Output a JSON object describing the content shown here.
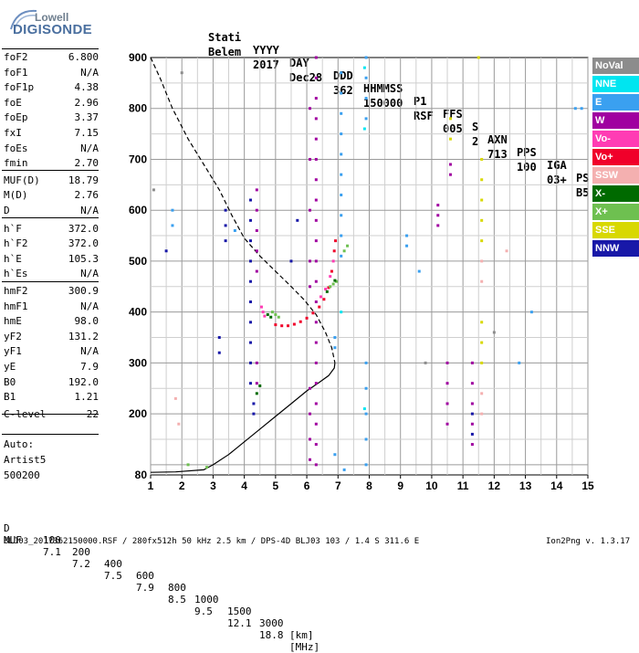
{
  "logo": {
    "line1": "Lowell",
    "line2": "DIGISONDE"
  },
  "header": {
    "labels": [
      "Stati",
      "YYYY",
      "DAY",
      "DDD",
      "HHMMSS",
      "P1",
      "FFS",
      "S",
      "AXN",
      "PPS",
      "IGA",
      "PS"
    ],
    "values": [
      "Belem",
      "2017",
      "Dec28",
      "362",
      "150000",
      "RSF",
      "005",
      "2",
      "713",
      "100",
      "03+",
      "B5"
    ]
  },
  "params": [
    {
      "k": "foF2",
      "v": "6.800"
    },
    {
      "k": "foF1",
      "v": "N/A"
    },
    {
      "k": "foF1p",
      "v": "4.38"
    },
    {
      "k": "foE",
      "v": "2.96"
    },
    {
      "k": "foEp",
      "v": "3.37"
    },
    {
      "k": "fxI",
      "v": "7.15"
    },
    {
      "k": "foEs",
      "v": "N/A"
    },
    {
      "k": "fmin",
      "v": "2.70"
    },
    {
      "k": "MUF(D)",
      "v": "18.79"
    },
    {
      "k": "M(D)",
      "v": "2.76"
    },
    {
      "k": "D",
      "v": "N/A"
    },
    {
      "k": "h`F",
      "v": "372.0"
    },
    {
      "k": "h`F2",
      "v": "372.0"
    },
    {
      "k": "h`E",
      "v": "105.3"
    },
    {
      "k": "h`Es",
      "v": "N/A"
    },
    {
      "k": "hmF2",
      "v": "300.9"
    },
    {
      "k": "hmF1",
      "v": "N/A"
    },
    {
      "k": "hmE",
      "v": "98.0"
    },
    {
      "k": "yF2",
      "v": "131.2"
    },
    {
      "k": "yF1",
      "v": "N/A"
    },
    {
      "k": "yE",
      "v": "7.9"
    },
    {
      "k": "B0",
      "v": "192.0"
    },
    {
      "k": "B1",
      "v": "1.21"
    },
    {
      "k": "C-level",
      "v": "22"
    }
  ],
  "auto": [
    "Auto:",
    "Artist5",
    "500200"
  ],
  "legend": [
    {
      "label": "NoVal",
      "color": "#8c8c8c"
    },
    {
      "label": "NNE",
      "color": "#00e5f0"
    },
    {
      "label": "E",
      "color": "#3aa0f0"
    },
    {
      "label": "W",
      "color": "#a000a0"
    },
    {
      "label": "Vo-",
      "color": "#ff3cb4"
    },
    {
      "label": "Vo+",
      "color": "#f0002a"
    },
    {
      "label": "SSW",
      "color": "#f4b0b0"
    },
    {
      "label": "X-",
      "color": "#006a00"
    },
    {
      "label": "X+",
      "color": "#6ec050"
    },
    {
      "label": "SSE",
      "color": "#d8d800"
    },
    {
      "label": "NNW",
      "color": "#1818a8"
    }
  ],
  "muf_table": {
    "d_label": "D",
    "d_values": [
      "100",
      "200",
      "400",
      "600",
      "800",
      "1000",
      "1500",
      "3000"
    ],
    "d_unit": "[km]",
    "muf_label": "MUF",
    "muf_values": [
      "7.1",
      "7.2",
      "7.5",
      "7.9",
      "8.5",
      "9.5",
      "12.1",
      "18.8"
    ],
    "muf_unit": "[MHz]"
  },
  "footer": {
    "left": "BLJ03_2017362150000.RSF / 280fx512h 50 kHz 2.5 km / DPS-4D BLJ03 103 / 1.4 S 311.6 E",
    "right": "Ion2Png v. 1.3.17"
  },
  "chart_data": {
    "type": "scatter",
    "xlim": [
      1,
      15
    ],
    "ylim": [
      80,
      900
    ],
    "x_ticks": [
      1,
      2,
      3,
      4,
      5,
      6,
      7,
      8,
      9,
      10,
      11,
      12,
      13,
      14,
      15
    ],
    "y_ticks": [
      80,
      200,
      300,
      400,
      500,
      600,
      700,
      800,
      900
    ],
    "grid": true,
    "traces": [
      {
        "name": "Vo+",
        "color": "#f0002a",
        "points": [
          [
            5.0,
            375
          ],
          [
            5.2,
            373
          ],
          [
            5.4,
            373
          ],
          [
            5.6,
            376
          ],
          [
            5.8,
            381
          ],
          [
            6.0,
            388
          ],
          [
            6.2,
            398
          ],
          [
            6.4,
            410
          ],
          [
            6.55,
            425
          ],
          [
            6.7,
            448
          ],
          [
            6.8,
            480
          ],
          [
            6.88,
            520
          ],
          [
            6.92,
            540
          ]
        ]
      },
      {
        "name": "Vo-",
        "color": "#ff3cb4",
        "points": [
          [
            4.55,
            410
          ],
          [
            4.6,
            400
          ],
          [
            4.65,
            392
          ],
          [
            6.45,
            430
          ],
          [
            6.6,
            445
          ],
          [
            6.75,
            470
          ],
          [
            6.85,
            500
          ]
        ]
      },
      {
        "name": "X+",
        "color": "#6ec050",
        "points": [
          [
            4.9,
            400
          ],
          [
            5.0,
            395
          ],
          [
            5.1,
            390
          ],
          [
            6.95,
            460
          ],
          [
            6.85,
            455
          ],
          [
            6.75,
            450
          ],
          [
            7.2,
            520
          ],
          [
            7.3,
            530
          ],
          [
            2.2,
            100
          ],
          [
            2.8,
            95
          ]
        ]
      },
      {
        "name": "X-",
        "color": "#006a00",
        "points": [
          [
            4.75,
            395
          ],
          [
            4.85,
            390
          ],
          [
            6.65,
            440
          ],
          [
            6.9,
            462
          ],
          [
            4.4,
            240
          ],
          [
            4.5,
            255
          ]
        ]
      },
      {
        "name": "W",
        "color": "#a000a0",
        "points": [
          [
            6.3,
            900
          ],
          [
            6.3,
            860
          ],
          [
            6.3,
            820
          ],
          [
            6.3,
            780
          ],
          [
            6.3,
            740
          ],
          [
            6.3,
            700
          ],
          [
            6.3,
            660
          ],
          [
            6.3,
            620
          ],
          [
            6.3,
            580
          ],
          [
            6.3,
            540
          ],
          [
            6.3,
            500
          ],
          [
            6.3,
            460
          ],
          [
            6.3,
            420
          ],
          [
            6.3,
            380
          ],
          [
            6.3,
            340
          ],
          [
            6.3,
            300
          ],
          [
            6.3,
            260
          ],
          [
            6.3,
            220
          ],
          [
            6.3,
            180
          ],
          [
            6.3,
            140
          ],
          [
            6.3,
            100
          ],
          [
            4.4,
            640
          ],
          [
            4.4,
            600
          ],
          [
            4.4,
            560
          ],
          [
            4.4,
            520
          ],
          [
            4.4,
            480
          ],
          [
            4.4,
            300
          ],
          [
            4.4,
            260
          ],
          [
            6.1,
            800
          ],
          [
            6.1,
            700
          ],
          [
            6.1,
            600
          ],
          [
            6.1,
            500
          ],
          [
            6.1,
            450
          ],
          [
            6.1,
            250
          ],
          [
            6.1,
            200
          ],
          [
            6.1,
            150
          ],
          [
            6.1,
            110
          ],
          [
            10.2,
            610
          ],
          [
            10.2,
            590
          ],
          [
            10.2,
            570
          ],
          [
            10.6,
            690
          ],
          [
            10.6,
            670
          ],
          [
            10.5,
            300
          ],
          [
            10.5,
            260
          ],
          [
            10.5,
            220
          ],
          [
            10.5,
            180
          ],
          [
            11.3,
            300
          ],
          [
            11.3,
            260
          ],
          [
            11.3,
            220
          ],
          [
            11.3,
            180
          ],
          [
            11.3,
            140
          ]
        ]
      },
      {
        "name": "NNW",
        "color": "#1818a8",
        "points": [
          [
            3.4,
            600
          ],
          [
            3.4,
            570
          ],
          [
            3.4,
            540
          ],
          [
            4.2,
            620
          ],
          [
            4.2,
            580
          ],
          [
            4.2,
            540
          ],
          [
            4.2,
            500
          ],
          [
            4.2,
            460
          ],
          [
            4.2,
            420
          ],
          [
            4.2,
            380
          ],
          [
            4.2,
            340
          ],
          [
            4.2,
            300
          ],
          [
            4.2,
            260
          ],
          [
            3.2,
            350
          ],
          [
            3.2,
            320
          ],
          [
            5.5,
            500
          ],
          [
            5.7,
            580
          ],
          [
            1.5,
            520
          ],
          [
            4.3,
            220
          ],
          [
            4.3,
            200
          ],
          [
            11.3,
            200
          ],
          [
            11.3,
            160
          ]
        ]
      },
      {
        "name": "E",
        "color": "#3aa0f0",
        "points": [
          [
            7.9,
            900
          ],
          [
            7.9,
            860
          ],
          [
            7.9,
            820
          ],
          [
            7.9,
            780
          ],
          [
            7.9,
            300
          ],
          [
            7.9,
            250
          ],
          [
            7.9,
            200
          ],
          [
            7.9,
            150
          ],
          [
            7.9,
            100
          ],
          [
            7.1,
            870
          ],
          [
            7.1,
            830
          ],
          [
            7.1,
            790
          ],
          [
            7.1,
            750
          ],
          [
            7.1,
            710
          ],
          [
            7.1,
            670
          ],
          [
            7.1,
            630
          ],
          [
            7.1,
            590
          ],
          [
            7.1,
            550
          ],
          [
            7.1,
            510
          ],
          [
            6.9,
            350
          ],
          [
            6.9,
            330
          ],
          [
            9.2,
            550
          ],
          [
            9.2,
            530
          ],
          [
            1.7,
            600
          ],
          [
            1.7,
            570
          ],
          [
            3.7,
            560
          ],
          [
            14.8,
            800
          ],
          [
            14.6,
            800
          ],
          [
            13.2,
            400
          ],
          [
            7.2,
            90
          ],
          [
            6.9,
            120
          ],
          [
            9.6,
            480
          ],
          [
            12.8,
            300
          ]
        ]
      },
      {
        "name": "NNE",
        "color": "#00e5f0",
        "points": [
          [
            7.85,
            880
          ],
          [
            7.85,
            760
          ],
          [
            7.85,
            210
          ],
          [
            7.1,
            400
          ]
        ]
      },
      {
        "name": "SSE",
        "color": "#d8d800",
        "points": [
          [
            11.6,
            700
          ],
          [
            11.6,
            660
          ],
          [
            11.6,
            620
          ],
          [
            11.6,
            580
          ],
          [
            11.6,
            540
          ],
          [
            11.6,
            380
          ],
          [
            11.6,
            340
          ],
          [
            11.6,
            300
          ],
          [
            10.6,
            780
          ],
          [
            10.6,
            740
          ],
          [
            11.5,
            900
          ]
        ]
      },
      {
        "name": "SSW",
        "color": "#f4b0b0",
        "points": [
          [
            1.8,
            230
          ],
          [
            1.9,
            180
          ],
          [
            11.6,
            500
          ],
          [
            11.6,
            460
          ],
          [
            11.6,
            240
          ],
          [
            11.6,
            200
          ],
          [
            12.4,
            520
          ]
        ]
      },
      {
        "name": "NoVal",
        "color": "#8c8c8c",
        "points": [
          [
            1.1,
            640
          ],
          [
            2.0,
            870
          ],
          [
            12.0,
            360
          ],
          [
            9.8,
            300
          ]
        ]
      }
    ],
    "curves": [
      {
        "name": "virtual height",
        "style": "dashed",
        "points": [
          [
            1.0,
            900
          ],
          [
            1.3,
            860
          ],
          [
            1.7,
            800
          ],
          [
            2.2,
            740
          ],
          [
            2.7,
            690
          ],
          [
            3.2,
            640
          ],
          [
            3.6,
            590
          ],
          [
            4.0,
            545
          ],
          [
            4.5,
            510
          ],
          [
            5.0,
            480
          ],
          [
            5.5,
            450
          ],
          [
            5.9,
            425
          ],
          [
            6.3,
            395
          ],
          [
            6.6,
            360
          ],
          [
            6.8,
            330
          ],
          [
            6.9,
            300
          ]
        ]
      },
      {
        "name": "true height",
        "style": "solid",
        "points": [
          [
            1.0,
            85
          ],
          [
            1.8,
            86
          ],
          [
            2.7,
            90
          ],
          [
            3.0,
            100
          ],
          [
            3.5,
            120
          ],
          [
            4.0,
            145
          ],
          [
            4.5,
            170
          ],
          [
            5.0,
            195
          ],
          [
            5.5,
            220
          ],
          [
            6.0,
            245
          ],
          [
            6.4,
            262
          ],
          [
            6.7,
            275
          ],
          [
            6.88,
            290
          ],
          [
            6.9,
            300
          ]
        ]
      }
    ]
  }
}
